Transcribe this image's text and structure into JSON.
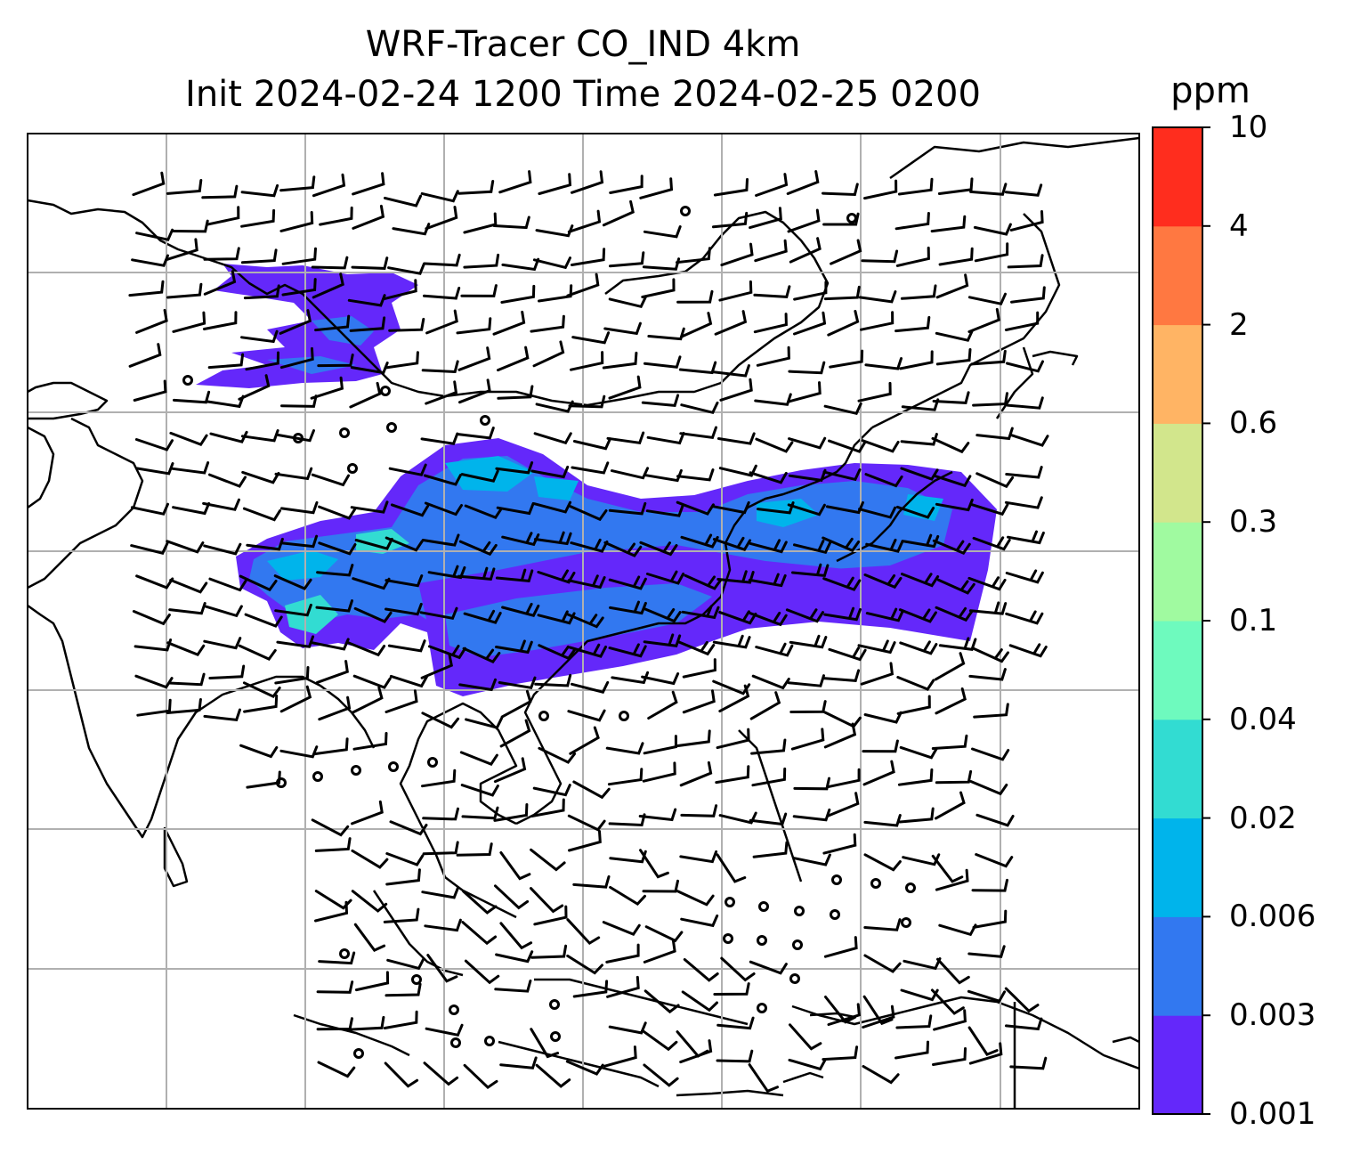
{
  "title": {
    "line1": "WRF-Tracer CO_IND 4km",
    "line2": "Init 2024-02-24 1200 Time 2024-02-25 0200"
  },
  "colorbar": {
    "unit": "ppm",
    "levels": [
      "0.001",
      "0.003",
      "0.006",
      "0.02",
      "0.04",
      "0.1",
      "0.3",
      "0.6",
      "2",
      "4",
      "10"
    ],
    "colors": [
      "#6428fa",
      "#3278f0",
      "#00b4eb",
      "#32dcd2",
      "#6efabe",
      "#a0faa0",
      "#d2e68c",
      "#ffb464",
      "#ff7841",
      "#ff2d1e"
    ]
  },
  "map": {
    "gridlines": true,
    "gridline_color": "#b0b0b0",
    "coastline_color": "#000000"
  },
  "chart_data": {
    "type": "heatmap",
    "field": "CO_IND tracer concentration",
    "unit": "ppm",
    "overlay": "wind barbs",
    "plume": [
      {
        "region": "central plume band",
        "level": "0.003-0.006"
      },
      {
        "region": "plume core",
        "level": "0.006-0.04"
      },
      {
        "region": "northern plume",
        "level": "0.001-0.006"
      }
    ]
  }
}
